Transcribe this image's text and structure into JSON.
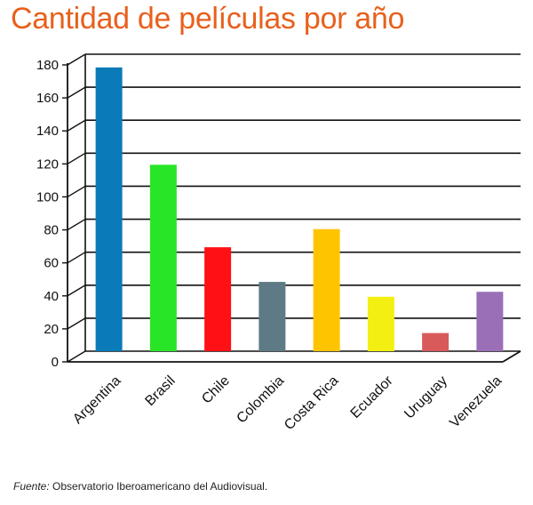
{
  "chart_data": {
    "type": "bar",
    "title": "Cantidad de películas por año",
    "categories": [
      "Argentina",
      "Brasil",
      "Chile",
      "Colombia",
      "Costa Rica",
      "Ecuador",
      "Uruguay",
      "Venezuela"
    ],
    "values": [
      172,
      113,
      63,
      42,
      74,
      33,
      11,
      36
    ],
    "colors": [
      "#0a7ab8",
      "#29e528",
      "#ff1014",
      "#5e7a86",
      "#ffc400",
      "#f4ef12",
      "#d95a5a",
      "#9a6fb8"
    ],
    "ylim": [
      0,
      180
    ],
    "yticks": [
      0,
      20,
      40,
      60,
      80,
      100,
      120,
      140,
      160,
      180
    ],
    "xlabel": "",
    "ylabel": "",
    "grid": true
  },
  "source": {
    "label": "Fuente:",
    "text": "Observatorio Iberoamericano del Audiovisual."
  }
}
